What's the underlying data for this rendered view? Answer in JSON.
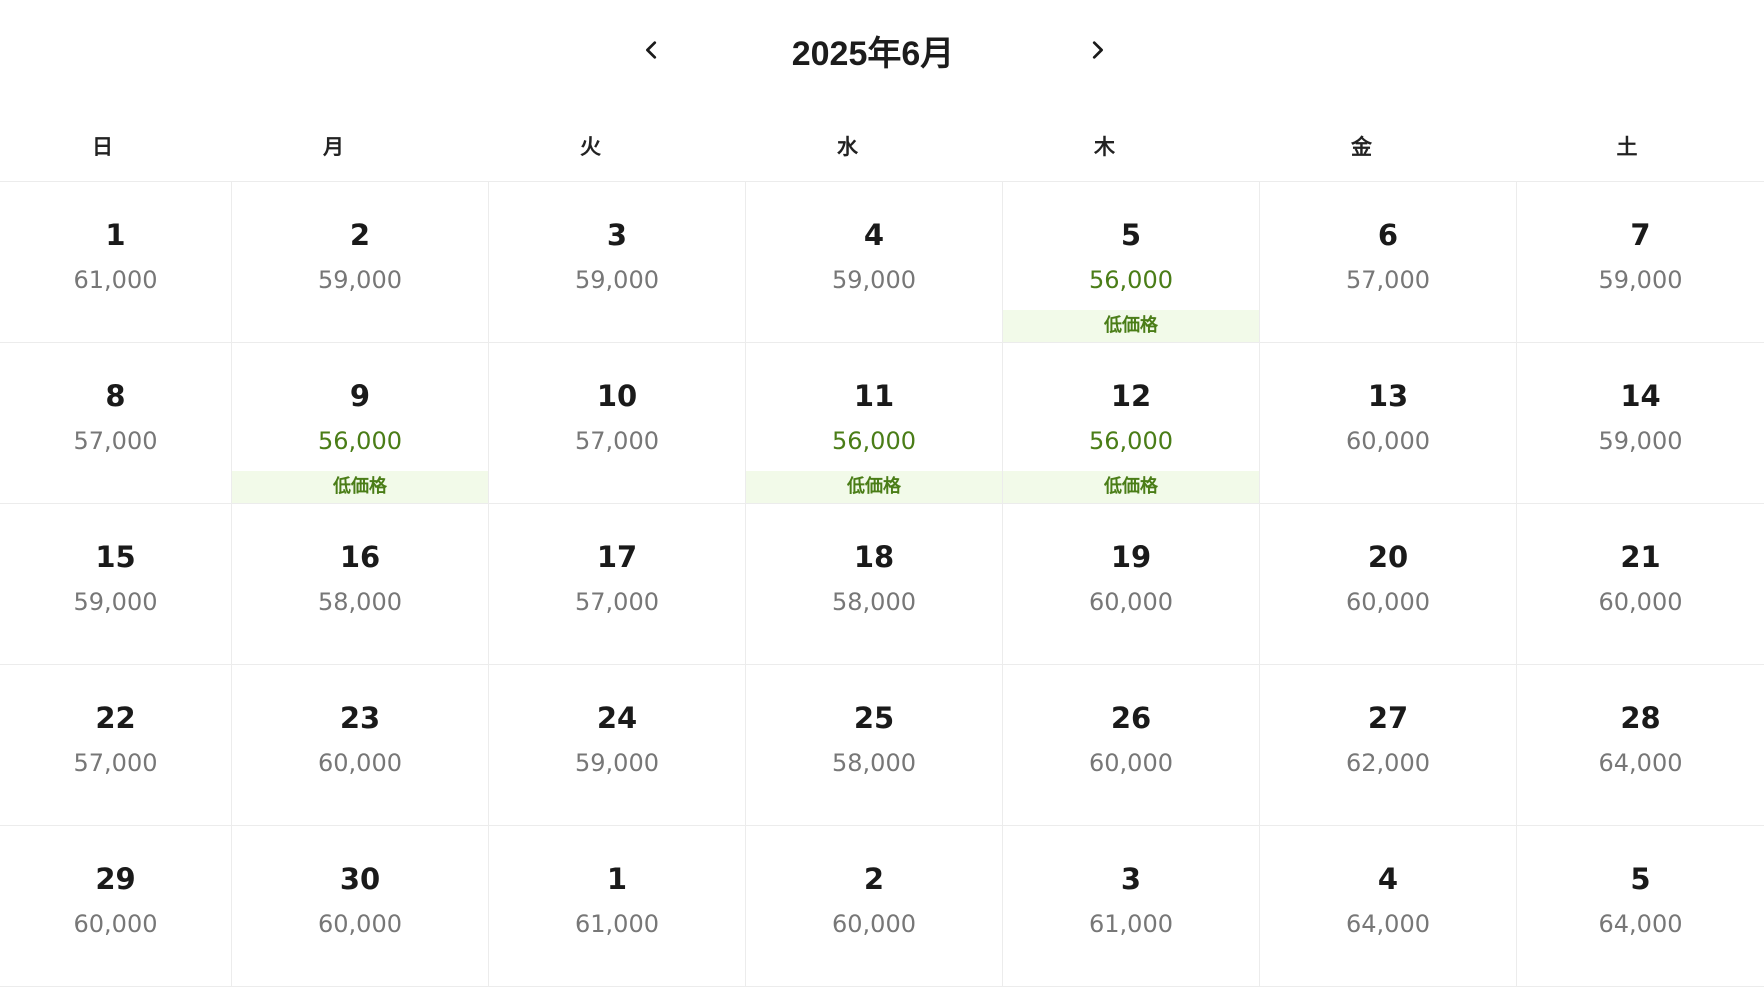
{
  "header": {
    "title": "2025年6月",
    "prev_icon": "chevron-left-icon",
    "next_icon": "chevron-right-icon"
  },
  "weekdays": [
    "日",
    "月",
    "火",
    "水",
    "木",
    "金",
    "土"
  ],
  "colors": {
    "low_price_text": "#4a7d17",
    "low_price_bg": "#f2fae9",
    "price_text": "#777777"
  },
  "weeks": [
    [
      {
        "day": "1",
        "price": "61,000",
        "low": false,
        "badge": ""
      },
      {
        "day": "2",
        "price": "59,000",
        "low": false,
        "badge": ""
      },
      {
        "day": "3",
        "price": "59,000",
        "low": false,
        "badge": ""
      },
      {
        "day": "4",
        "price": "59,000",
        "low": false,
        "badge": ""
      },
      {
        "day": "5",
        "price": "56,000",
        "low": true,
        "badge": "低価格"
      },
      {
        "day": "6",
        "price": "57,000",
        "low": false,
        "badge": ""
      },
      {
        "day": "7",
        "price": "59,000",
        "low": false,
        "badge": ""
      }
    ],
    [
      {
        "day": "8",
        "price": "57,000",
        "low": false,
        "badge": ""
      },
      {
        "day": "9",
        "price": "56,000",
        "low": true,
        "badge": "低価格"
      },
      {
        "day": "10",
        "price": "57,000",
        "low": false,
        "badge": ""
      },
      {
        "day": "11",
        "price": "56,000",
        "low": true,
        "badge": "低価格"
      },
      {
        "day": "12",
        "price": "56,000",
        "low": true,
        "badge": "低価格"
      },
      {
        "day": "13",
        "price": "60,000",
        "low": false,
        "badge": ""
      },
      {
        "day": "14",
        "price": "59,000",
        "low": false,
        "badge": ""
      }
    ],
    [
      {
        "day": "15",
        "price": "59,000",
        "low": false,
        "badge": ""
      },
      {
        "day": "16",
        "price": "58,000",
        "low": false,
        "badge": ""
      },
      {
        "day": "17",
        "price": "57,000",
        "low": false,
        "badge": ""
      },
      {
        "day": "18",
        "price": "58,000",
        "low": false,
        "badge": ""
      },
      {
        "day": "19",
        "price": "60,000",
        "low": false,
        "badge": ""
      },
      {
        "day": "20",
        "price": "60,000",
        "low": false,
        "badge": ""
      },
      {
        "day": "21",
        "price": "60,000",
        "low": false,
        "badge": ""
      }
    ],
    [
      {
        "day": "22",
        "price": "57,000",
        "low": false,
        "badge": ""
      },
      {
        "day": "23",
        "price": "60,000",
        "low": false,
        "badge": ""
      },
      {
        "day": "24",
        "price": "59,000",
        "low": false,
        "badge": ""
      },
      {
        "day": "25",
        "price": "58,000",
        "low": false,
        "badge": ""
      },
      {
        "day": "26",
        "price": "60,000",
        "low": false,
        "badge": ""
      },
      {
        "day": "27",
        "price": "62,000",
        "low": false,
        "badge": ""
      },
      {
        "day": "28",
        "price": "64,000",
        "low": false,
        "badge": ""
      }
    ],
    [
      {
        "day": "29",
        "price": "60,000",
        "low": false,
        "badge": ""
      },
      {
        "day": "30",
        "price": "60,000",
        "low": false,
        "badge": ""
      },
      {
        "day": "1",
        "price": "61,000",
        "low": false,
        "badge": ""
      },
      {
        "day": "2",
        "price": "60,000",
        "low": false,
        "badge": ""
      },
      {
        "day": "3",
        "price": "61,000",
        "low": false,
        "badge": ""
      },
      {
        "day": "4",
        "price": "64,000",
        "low": false,
        "badge": ""
      },
      {
        "day": "5",
        "price": "64,000",
        "low": false,
        "badge": ""
      }
    ]
  ]
}
